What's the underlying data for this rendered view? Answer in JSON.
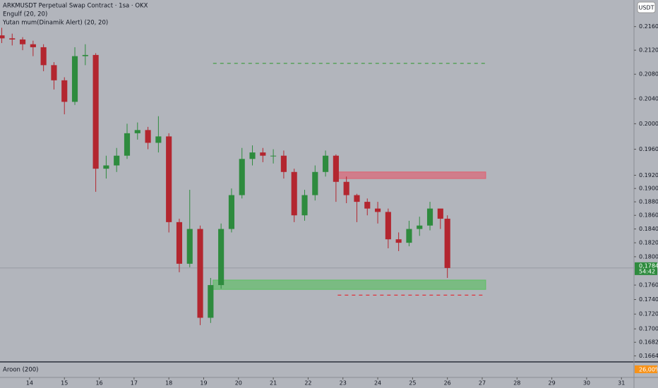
{
  "chart_data": {
    "type": "candlestick",
    "title": "ARKMUSDT Perpetual Swap Contract · 1sa · OKX",
    "indicators": [
      "Engulf (20, 20)",
      "Yutan mum(Dinamik Alert) (20, 20)"
    ],
    "currency": "USDT",
    "x": [
      13.2,
      13.5,
      13.8,
      14.1,
      14.4,
      14.7,
      15.0,
      15.3,
      15.6,
      15.9,
      16.2,
      16.5,
      16.8,
      17.1,
      17.4,
      17.7,
      18.0,
      18.3,
      18.6,
      18.9,
      19.2,
      19.5,
      19.8,
      20.1,
      20.4,
      20.7,
      21.0,
      21.3,
      21.6,
      21.9,
      22.2,
      22.5,
      22.8,
      23.1,
      23.4,
      23.7,
      24.0,
      24.3,
      24.6,
      24.9,
      25.2,
      25.5,
      25.8,
      26.0
    ],
    "open": [
      0.2145,
      0.214,
      0.2138,
      0.213,
      0.2125,
      0.2095,
      0.207,
      0.2035,
      0.211,
      0.2112,
      0.193,
      0.1935,
      0.195,
      0.1985,
      0.199,
      0.197,
      0.198,
      0.185,
      0.179,
      0.184,
      0.1715,
      0.176,
      0.184,
      0.189,
      0.1945,
      0.1955,
      0.195,
      0.195,
      0.1925,
      0.186,
      0.189,
      0.1925,
      0.195,
      0.191,
      0.189,
      0.188,
      0.187,
      0.1865,
      0.1825,
      0.182,
      0.184,
      0.1845,
      0.187,
      0.1855
    ],
    "high": [
      0.2158,
      0.2148,
      0.2142,
      0.2136,
      0.213,
      0.21,
      0.2075,
      0.2125,
      0.213,
      0.2115,
      0.195,
      0.1962,
      0.2,
      0.2002,
      0.1995,
      0.2012,
      0.1985,
      0.1855,
      0.1898,
      0.1845,
      0.177,
      0.1848,
      0.19,
      0.1962,
      0.1966,
      0.1962,
      0.196,
      0.1958,
      0.193,
      0.1898,
      0.1935,
      0.1958,
      0.1952,
      0.1918,
      0.1892,
      0.1885,
      0.188,
      0.187,
      0.1835,
      0.1852,
      0.1858,
      0.188,
      0.1865,
      0.186
    ],
    "low": [
      0.2132,
      0.2128,
      0.212,
      0.211,
      0.2085,
      0.2055,
      0.2015,
      0.203,
      0.2095,
      0.1895,
      0.1915,
      0.1925,
      0.1945,
      0.1975,
      0.196,
      0.1955,
      0.1835,
      0.1778,
      0.1785,
      0.1705,
      0.1708,
      0.1755,
      0.1835,
      0.1885,
      0.1935,
      0.194,
      0.1938,
      0.1915,
      0.185,
      0.1852,
      0.1882,
      0.1918,
      0.188,
      0.1878,
      0.185,
      0.186,
      0.1848,
      0.1812,
      0.1808,
      0.1815,
      0.183,
      0.1838,
      0.184,
      0.177
    ],
    "close": [
      0.214,
      0.2138,
      0.213,
      0.2125,
      0.2095,
      0.207,
      0.2035,
      0.211,
      0.2112,
      0.193,
      0.1935,
      0.195,
      0.1985,
      0.199,
      0.197,
      0.198,
      0.185,
      0.179,
      0.184,
      0.1715,
      0.176,
      0.184,
      0.189,
      0.1945,
      0.1955,
      0.195,
      0.195,
      0.1925,
      0.186,
      0.189,
      0.1925,
      0.195,
      0.191,
      0.189,
      0.188,
      0.187,
      0.1865,
      0.1825,
      0.182,
      0.184,
      0.1845,
      0.187,
      0.1855,
      0.1784
    ],
    "up_color": "#2e8b3e",
    "down_color": "#b3262f",
    "log_scale": true,
    "xlim": [
      13.15,
      31.36
    ],
    "xticks": [
      14,
      15,
      16,
      17,
      18,
      19,
      20,
      21,
      22,
      23,
      24,
      25,
      26,
      27,
      28,
      29,
      30,
      31
    ],
    "ylim": [
      0.1657,
      0.2206
    ],
    "yticks": [
      {
        "value": 0.216,
        "label": "0.2160"
      },
      {
        "value": 0.212,
        "label": "0.2120"
      },
      {
        "value": 0.208,
        "label": "0.2080"
      },
      {
        "value": 0.204,
        "label": "0.2040"
      },
      {
        "value": 0.2,
        "label": "0.2000"
      },
      {
        "value": 0.196,
        "label": "0.1960"
      },
      {
        "value": 0.192,
        "label": "0.1920"
      },
      {
        "value": 0.19,
        "label": "0.1900"
      },
      {
        "value": 0.188,
        "label": "0.1880"
      },
      {
        "value": 0.186,
        "label": "0.1860"
      },
      {
        "value": 0.184,
        "label": "0.1840"
      },
      {
        "value": 0.182,
        "label": "0.1820"
      },
      {
        "value": 0.18,
        "label": "0.1800"
      },
      {
        "value": 0.176,
        "label": "0.1760"
      },
      {
        "value": 0.174,
        "label": "0.1740"
      },
      {
        "value": 0.172,
        "label": "0.1720"
      },
      {
        "value": 0.17,
        "label": "0.1700"
      },
      {
        "value": 0.1682,
        "label": "0.1682"
      },
      {
        "value": 0.1664,
        "label": "0.1664"
      }
    ],
    "last_price": {
      "value": 0.1784,
      "label": "0,1784",
      "countdown": "54:42",
      "color": "#2e8b3e"
    },
    "zones": [
      {
        "from": 0.1915,
        "to": 0.1925,
        "x": [
          22.85,
          27.1
        ],
        "color": "#e06070"
      },
      {
        "from": 0.1754,
        "to": 0.1767,
        "x": [
          19.27,
          27.1
        ],
        "color": "#5cbf62"
      }
    ],
    "levels": [
      {
        "value": 0.2098,
        "x": [
          19.27,
          27.1
        ],
        "color": "#3a9a3a"
      },
      {
        "value": 0.1746,
        "x": [
          22.85,
          27.1
        ],
        "color": "#e0303a"
      }
    ],
    "aroon": {
      "title": "Aroon (200)",
      "label": "26,00%",
      "color": "#f7931a"
    }
  }
}
